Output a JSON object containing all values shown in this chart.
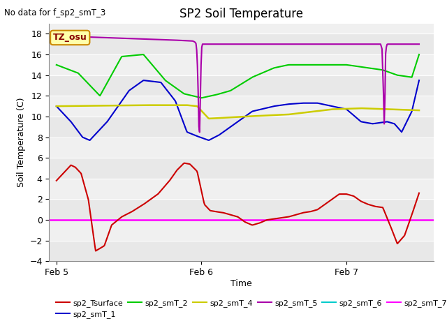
{
  "title": "SP2 Soil Temperature",
  "no_data_text": "No data for f_sp2_smT_3",
  "xlabel": "Time",
  "ylabel": "Soil Temperature (C)",
  "ylim": [
    -4,
    19
  ],
  "yticks": [
    -4,
    -2,
    0,
    2,
    4,
    6,
    8,
    10,
    12,
    14,
    16,
    18
  ],
  "xlim": [
    -0.05,
    2.6
  ],
  "xtick_positions": [
    0.0,
    1.0,
    2.0
  ],
  "xtick_labels": [
    "Feb 5",
    "Feb 6",
    "Feb 7"
  ],
  "bg_color": "#e8e8e8",
  "plot_bg": "#f0f0f0",
  "annotation_text": "TZ_osu",
  "annotation_box_color": "#ffffaa",
  "annotation_box_edge": "#cc8800",
  "colors": {
    "sp2_Tsurface": "#cc0000",
    "sp2_smT_1": "#0000cc",
    "sp2_smT_2": "#00cc00",
    "sp2_smT_4": "#cccc00",
    "sp2_smT_5": "#aa00aa",
    "sp2_smT_6": "#00cccc",
    "sp2_smT_7": "#ff00ff"
  },
  "tsurface_t": [
    0,
    0.06,
    0.1,
    0.13,
    0.17,
    0.22,
    0.27,
    0.33,
    0.38,
    0.45,
    0.52,
    0.6,
    0.7,
    0.78,
    0.83,
    0.88,
    0.92,
    0.97,
    1.02,
    1.06,
    1.1,
    1.15,
    1.2,
    1.25,
    1.3,
    1.35,
    1.4,
    1.45,
    1.5,
    1.55,
    1.6,
    1.65,
    1.7,
    1.75,
    1.8,
    1.85,
    1.9,
    1.95,
    2.0,
    2.05,
    2.1,
    2.15,
    2.2,
    2.25,
    2.3,
    2.35,
    2.4,
    2.45,
    2.5
  ],
  "tsurface_y": [
    3.8,
    4.7,
    5.3,
    5.1,
    4.5,
    2.0,
    -3.0,
    -2.5,
    -0.5,
    0.3,
    0.8,
    1.5,
    2.5,
    3.8,
    4.8,
    5.5,
    5.4,
    4.7,
    1.5,
    0.9,
    0.8,
    0.7,
    0.5,
    0.3,
    -0.2,
    -0.5,
    -0.3,
    0.0,
    0.1,
    0.2,
    0.3,
    0.5,
    0.7,
    0.8,
    1.0,
    1.5,
    2.0,
    2.5,
    2.5,
    2.3,
    1.8,
    1.5,
    1.3,
    1.2,
    -0.5,
    -2.3,
    -1.5,
    0.5,
    2.6
  ],
  "smt1_t": [
    0,
    0.1,
    0.18,
    0.23,
    0.35,
    0.5,
    0.6,
    0.72,
    0.82,
    0.9,
    0.97,
    1.05,
    1.12,
    1.2,
    1.35,
    1.5,
    1.6,
    1.7,
    1.8,
    1.9,
    2.0,
    2.1,
    2.18,
    2.28,
    2.33,
    2.38,
    2.45,
    2.5
  ],
  "smt1_y": [
    11.0,
    9.5,
    8.0,
    7.7,
    9.5,
    12.5,
    13.5,
    13.3,
    11.5,
    8.5,
    8.1,
    7.7,
    8.2,
    9.0,
    10.5,
    11.0,
    11.2,
    11.3,
    11.3,
    11.0,
    10.7,
    9.5,
    9.3,
    9.5,
    9.3,
    8.5,
    10.5,
    13.5
  ],
  "smt2_t": [
    0,
    0.15,
    0.3,
    0.45,
    0.6,
    0.75,
    0.88,
    1.0,
    1.1,
    1.2,
    1.35,
    1.5,
    1.6,
    1.7,
    1.85,
    2.0,
    2.15,
    2.25,
    2.35,
    2.45,
    2.5
  ],
  "smt2_y": [
    15.0,
    14.2,
    12.0,
    15.8,
    16.0,
    13.5,
    12.2,
    11.8,
    12.1,
    12.5,
    13.8,
    14.7,
    15.0,
    15.0,
    15.0,
    15.0,
    14.7,
    14.5,
    14.0,
    13.8,
    16.0
  ],
  "smt4_t": [
    0,
    0.3,
    0.6,
    0.9,
    0.97,
    1.05,
    1.3,
    1.6,
    1.9,
    2.1,
    2.3,
    2.5
  ],
  "smt4_y": [
    11.0,
    11.05,
    11.1,
    11.1,
    11.0,
    9.8,
    10.0,
    10.2,
    10.7,
    10.8,
    10.7,
    10.6
  ],
  "smt5_t": [
    0,
    0.2,
    0.4,
    0.6,
    0.8,
    0.94,
    0.955,
    0.965,
    0.975,
    0.98,
    0.985,
    0.99,
    0.995,
    1.0,
    1.005,
    1.01,
    1.02,
    1.1,
    1.5,
    1.9,
    2.22,
    2.235,
    2.245,
    2.255,
    2.26,
    2.265,
    2.27,
    2.28,
    2.29,
    2.3,
    2.35,
    2.5
  ],
  "smt5_y": [
    17.8,
    17.7,
    17.6,
    17.5,
    17.4,
    17.3,
    17.2,
    17.0,
    14.0,
    10.0,
    7.5,
    10.0,
    14.0,
    16.5,
    17.0,
    17.0,
    17.0,
    17.0,
    17.0,
    17.0,
    17.0,
    17.0,
    16.5,
    12.0,
    9.0,
    12.0,
    16.5,
    17.0,
    17.0,
    17.0,
    17.0,
    17.0
  ],
  "smt7_y": 0.0
}
